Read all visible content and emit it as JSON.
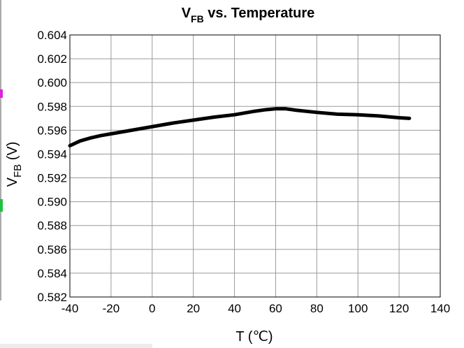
{
  "chart_data": {
    "type": "line",
    "title": "V",
    "title_sub": "FB",
    "title_rest": " vs. Temperature",
    "xlabel": "T (℃)",
    "ylabel": "V",
    "ylabel_sub": "FB",
    "ylabel_rest": " (V)",
    "xlim": [
      -40,
      140
    ],
    "ylim": [
      0.582,
      0.604
    ],
    "x_ticks": [
      -40,
      -20,
      0,
      20,
      40,
      60,
      80,
      100,
      120,
      140
    ],
    "y_ticks": [
      "0.582",
      "0.584",
      "0.586",
      "0.588",
      "0.590",
      "0.592",
      "0.594",
      "0.596",
      "0.598",
      "0.600",
      "0.602",
      "0.604"
    ],
    "grid": true,
    "series": [
      {
        "color": "#000000",
        "x": [
          -40,
          -35,
          -30,
          -25,
          -20,
          -10,
          0,
          10,
          20,
          30,
          40,
          50,
          55,
          60,
          65,
          70,
          80,
          90,
          100,
          110,
          120,
          125
        ],
        "y": [
          0.5947,
          0.5951,
          0.59535,
          0.59555,
          0.5957,
          0.596,
          0.5963,
          0.5966,
          0.59685,
          0.5971,
          0.5973,
          0.5976,
          0.59772,
          0.5978,
          0.5978,
          0.59768,
          0.5975,
          0.59735,
          0.5973,
          0.5972,
          0.59705,
          0.597
        ]
      }
    ]
  }
}
